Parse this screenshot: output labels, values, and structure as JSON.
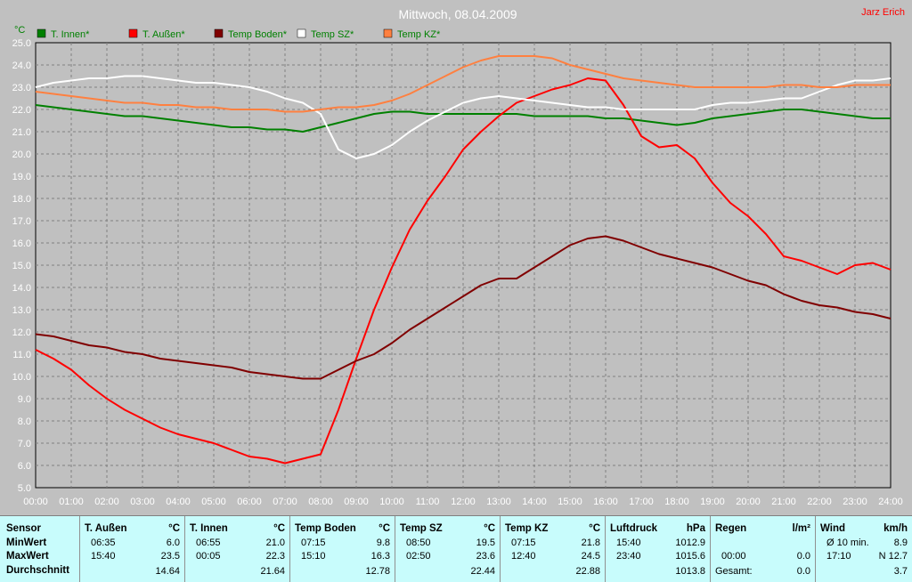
{
  "chart_data": {
    "type": "line",
    "title": "Mittwoch, 08.04.2009",
    "watermark": "Jarz Erich",
    "unit_label": "°C",
    "ylim": [
      5.0,
      25.0
    ],
    "y_ticks": [
      "5.0",
      "6.0",
      "7.0",
      "8.0",
      "9.0",
      "10.0",
      "11.0",
      "12.0",
      "13.0",
      "14.0",
      "15.0",
      "16.0",
      "17.0",
      "18.0",
      "19.0",
      "20.0",
      "21.0",
      "22.0",
      "23.0",
      "24.0",
      "25.0"
    ],
    "x_ticks": [
      "00:00",
      "01:00",
      "02:00",
      "03:00",
      "04:00",
      "05:00",
      "06:00",
      "07:00",
      "08:00",
      "09:00",
      "10:00",
      "11:00",
      "12:00",
      "13:00",
      "14:00",
      "15:00",
      "16:00",
      "17:00",
      "18:00",
      "19:00",
      "20:00",
      "21:00",
      "22:00",
      "23:00",
      "24:00"
    ],
    "x_hours": [
      0,
      0.5,
      1,
      1.5,
      2,
      2.5,
      3,
      3.5,
      4,
      4.5,
      5,
      5.5,
      6,
      6.5,
      7,
      7.5,
      8,
      8.5,
      9,
      9.5,
      10,
      10.5,
      11,
      11.5,
      12,
      12.5,
      13,
      13.5,
      14,
      14.5,
      15,
      15.5,
      16,
      16.5,
      17,
      17.5,
      18,
      18.5,
      19,
      19.5,
      20,
      20.5,
      21,
      21.5,
      22,
      22.5,
      23,
      23.5,
      24
    ],
    "grid": true,
    "legend_position": "top-left",
    "series": [
      {
        "name": "T. Innen*",
        "color": "#008000",
        "values": [
          22.2,
          22.1,
          22.0,
          21.9,
          21.8,
          21.7,
          21.7,
          21.6,
          21.5,
          21.4,
          21.3,
          21.2,
          21.2,
          21.1,
          21.1,
          21.0,
          21.2,
          21.4,
          21.6,
          21.8,
          21.9,
          21.9,
          21.8,
          21.8,
          21.8,
          21.8,
          21.8,
          21.8,
          21.7,
          21.7,
          21.7,
          21.7,
          21.6,
          21.6,
          21.5,
          21.4,
          21.3,
          21.4,
          21.6,
          21.7,
          21.8,
          21.9,
          22.0,
          22.0,
          21.9,
          21.8,
          21.7,
          21.6,
          21.6
        ]
      },
      {
        "name": "T. Außen*",
        "color": "#ff0000",
        "values": [
          11.2,
          10.8,
          10.3,
          9.6,
          9.0,
          8.5,
          8.1,
          7.7,
          7.4,
          7.2,
          7.0,
          6.7,
          6.4,
          6.3,
          6.1,
          6.3,
          6.5,
          8.5,
          10.8,
          13.0,
          14.9,
          16.6,
          17.9,
          19.0,
          20.2,
          21.0,
          21.7,
          22.3,
          22.6,
          22.9,
          23.1,
          23.4,
          23.3,
          22.2,
          20.8,
          20.3,
          20.4,
          19.8,
          18.7,
          17.8,
          17.2,
          16.4,
          15.4,
          15.2,
          14.9,
          14.6,
          15.0,
          15.1,
          14.8
        ]
      },
      {
        "name": "Temp Boden*",
        "color": "#800000",
        "values": [
          11.9,
          11.8,
          11.6,
          11.4,
          11.3,
          11.1,
          11.0,
          10.8,
          10.7,
          10.6,
          10.5,
          10.4,
          10.2,
          10.1,
          10.0,
          9.9,
          9.9,
          10.3,
          10.7,
          11.0,
          11.5,
          12.1,
          12.6,
          13.1,
          13.6,
          14.1,
          14.4,
          14.4,
          14.9,
          15.4,
          15.9,
          16.2,
          16.3,
          16.1,
          15.8,
          15.5,
          15.3,
          15.1,
          14.9,
          14.6,
          14.3,
          14.1,
          13.7,
          13.4,
          13.2,
          13.1,
          12.9,
          12.8,
          12.6
        ]
      },
      {
        "name": "Temp SZ*",
        "color": "#ffffff",
        "values": [
          23.0,
          23.2,
          23.3,
          23.4,
          23.4,
          23.5,
          23.5,
          23.4,
          23.3,
          23.2,
          23.2,
          23.1,
          23.0,
          22.8,
          22.5,
          22.3,
          21.8,
          20.2,
          19.8,
          20.0,
          20.4,
          21.0,
          21.5,
          21.9,
          22.3,
          22.5,
          22.6,
          22.5,
          22.4,
          22.3,
          22.2,
          22.1,
          22.1,
          22.0,
          22.0,
          22.0,
          22.0,
          22.0,
          22.2,
          22.3,
          22.3,
          22.4,
          22.5,
          22.5,
          22.8,
          23.1,
          23.3,
          23.3,
          23.4
        ]
      },
      {
        "name": "Temp KZ*",
        "color": "#ff8040",
        "values": [
          22.8,
          22.7,
          22.6,
          22.5,
          22.4,
          22.3,
          22.3,
          22.2,
          22.2,
          22.1,
          22.1,
          22.0,
          22.0,
          22.0,
          21.9,
          21.9,
          22.0,
          22.1,
          22.1,
          22.2,
          22.4,
          22.7,
          23.1,
          23.5,
          23.9,
          24.2,
          24.4,
          24.4,
          24.4,
          24.3,
          24.0,
          23.8,
          23.6,
          23.4,
          23.3,
          23.2,
          23.1,
          23.0,
          23.0,
          23.0,
          23.0,
          23.0,
          23.1,
          23.1,
          23.0,
          23.0,
          23.1,
          23.1,
          23.1
        ]
      }
    ]
  },
  "summary": {
    "row_labels": {
      "header": "Sensor",
      "min": "MinWert",
      "max": "MaxWert",
      "avg": "Durchschnitt"
    },
    "columns": [
      {
        "name": "T. Außen",
        "unit": "°C",
        "min_time": "06:35",
        "min_val": "6.0",
        "max_time": "15:40",
        "max_val": "23.5",
        "avg": "14.64"
      },
      {
        "name": "T. Innen",
        "unit": "°C",
        "min_time": "06:55",
        "min_val": "21.0",
        "max_time": "00:05",
        "max_val": "22.3",
        "avg": "21.64"
      },
      {
        "name": "Temp Boden",
        "unit": "°C",
        "min_time": "07:15",
        "min_val": "9.8",
        "max_time": "15:10",
        "max_val": "16.3",
        "avg": "12.78"
      },
      {
        "name": "Temp SZ",
        "unit": "°C",
        "min_time": "08:50",
        "min_val": "19.5",
        "max_time": "02:50",
        "max_val": "23.6",
        "avg": "22.44"
      },
      {
        "name": "Temp KZ",
        "unit": "°C",
        "min_time": "07:15",
        "min_val": "21.8",
        "max_time": "12:40",
        "max_val": "24.5",
        "avg": "22.88"
      },
      {
        "name": "Luftdruck",
        "unit": "hPa",
        "min_time": "15:40",
        "min_val": "1012.9",
        "max_time": "23:40",
        "max_val": "1015.6",
        "avg": "1013.8"
      },
      {
        "name": "Regen",
        "unit": "l/m²",
        "min_time": "",
        "min_val": "",
        "max_time": "00:00",
        "max_val": "0.0",
        "avg_label": "Gesamt:",
        "avg": "0.0"
      },
      {
        "name": "Wind",
        "unit": "km/h",
        "min_time": "Ø 10 min.",
        "min_val": "8.9",
        "max_time": "17:10",
        "max_val": "N 12.7",
        "avg": "3.7"
      }
    ]
  }
}
